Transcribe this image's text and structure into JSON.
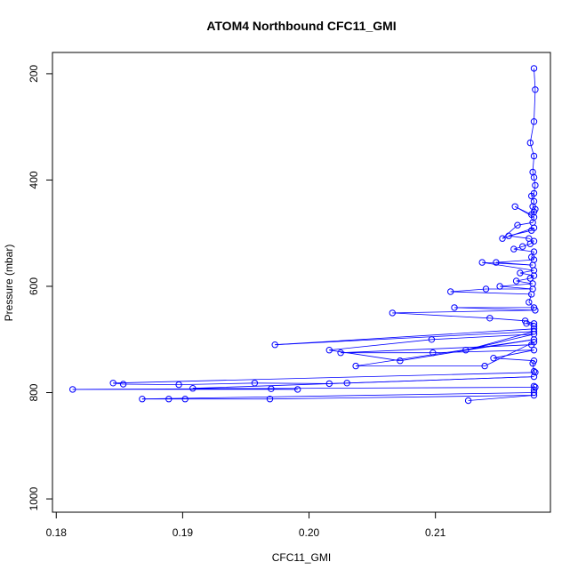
{
  "chart_data": {
    "type": "scatter",
    "title": "ATOM4 Northbound CFC11_GMI",
    "xlabel": "CFC11_GMI",
    "ylabel": "Pressure (mbar)",
    "xlim": [
      0.1797,
      0.2191
    ],
    "ylim": [
      1025,
      160
    ],
    "y_reversed": true,
    "grid": false,
    "legend": "none",
    "xticks": [
      0.18,
      0.19,
      0.2,
      0.21
    ],
    "xtick_labels": [
      "0.18",
      "0.19",
      "0.20",
      "0.21"
    ],
    "yticks": [
      200,
      400,
      600,
      800,
      1000
    ],
    "ytick_labels": [
      "200",
      "400",
      "600",
      "800",
      "1000"
    ],
    "series": [
      {
        "color": "#0000ff",
        "markers": "open-circle",
        "lines": true,
        "x": [
          0.2178,
          0.2179,
          0.2178,
          0.2175,
          0.2178,
          0.2177,
          0.2178,
          0.2179,
          0.2178,
          0.2176,
          0.2178,
          0.2177,
          0.2179,
          0.2178,
          0.2176,
          0.2163,
          0.2178,
          0.2177,
          0.2165,
          0.2153,
          0.2178,
          0.2176,
          0.2158,
          0.2174,
          0.2178,
          0.2175,
          0.2169,
          0.2162,
          0.2178,
          0.2176,
          0.2178,
          0.2148,
          0.2177,
          0.2137,
          0.2178,
          0.2167,
          0.2178,
          0.2175,
          0.2164,
          0.2177,
          0.2151,
          0.2177,
          0.214,
          0.2112,
          0.2176,
          0.2174,
          0.2178,
          0.2115,
          0.2179,
          0.2066,
          0.2143,
          0.2171,
          0.2178,
          0.2172,
          0.2178,
          0.2178,
          0.1973,
          0.2178,
          0.2124,
          0.2178,
          0.2097,
          0.2016,
          0.2072,
          0.2178,
          0.2037,
          0.2139,
          0.2178,
          0.2176,
          0.2025,
          0.2098,
          0.2178,
          0.2146,
          0.2178,
          0.2177,
          0.2178,
          0.2179,
          0.1845,
          0.1853,
          0.1897,
          0.1957,
          0.2016,
          0.203,
          0.2178,
          0.1908,
          0.197,
          0.1991,
          0.1813,
          0.2179,
          0.2178,
          0.2178,
          0.2178,
          0.1868,
          0.1889,
          0.1902,
          0.1969,
          0.2178,
          0.2126
        ],
        "y": [
          190,
          230,
          290,
          330,
          355,
          385,
          395,
          410,
          425,
          430,
          440,
          450,
          455,
          460,
          465,
          450,
          470,
          480,
          485,
          510,
          490,
          495,
          505,
          510,
          515,
          520,
          525,
          530,
          535,
          545,
          550,
          555,
          560,
          555,
          570,
          575,
          580,
          585,
          590,
          595,
          600,
          605,
          605,
          610,
          615,
          630,
          640,
          640,
          645,
          650,
          660,
          665,
          670,
          670,
          675,
          680,
          710,
          685,
          720,
          690,
          700,
          720,
          740,
          700,
          750,
          750,
          705,
          710,
          725,
          725,
          720,
          735,
          740,
          745,
          760,
          762,
          782,
          784,
          785,
          782,
          783,
          782,
          770,
          792,
          793,
          794,
          794,
          790,
          788,
          795,
          800,
          812,
          812,
          812,
          812,
          805,
          815
        ]
      }
    ]
  }
}
